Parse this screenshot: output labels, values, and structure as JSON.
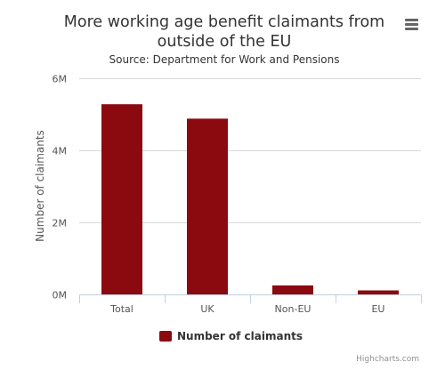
{
  "menu": {
    "icon": "hamburger-menu-icon"
  },
  "chart_data": {
    "type": "bar",
    "title": "More working age benefit claimants from outside of the EU",
    "title_lines": [
      "More working age benefit claimants from",
      "outside of the EU"
    ],
    "subtitle": "Source: Department for Work and Pensions",
    "xlabel": "",
    "ylabel": "Number of claimants",
    "categories": [
      "Total",
      "UK",
      "Non-EU",
      "EU"
    ],
    "series": [
      {
        "name": "Number of claimants",
        "values": [
          5280000,
          4880000,
          250000,
          110000
        ],
        "color": "#8b0a0f"
      }
    ],
    "ylim": [
      0,
      6000000
    ],
    "yticks": [
      0,
      2000000,
      4000000,
      6000000
    ],
    "ytick_labels": [
      "0M",
      "2M",
      "4M",
      "6M"
    ],
    "grid": true,
    "legend": "bottom-center",
    "credits": "Highcharts.com",
    "colors": {
      "bar": "#8b0a0f",
      "grid": "#d8d8d8",
      "axis": "#c0d0e0"
    }
  }
}
